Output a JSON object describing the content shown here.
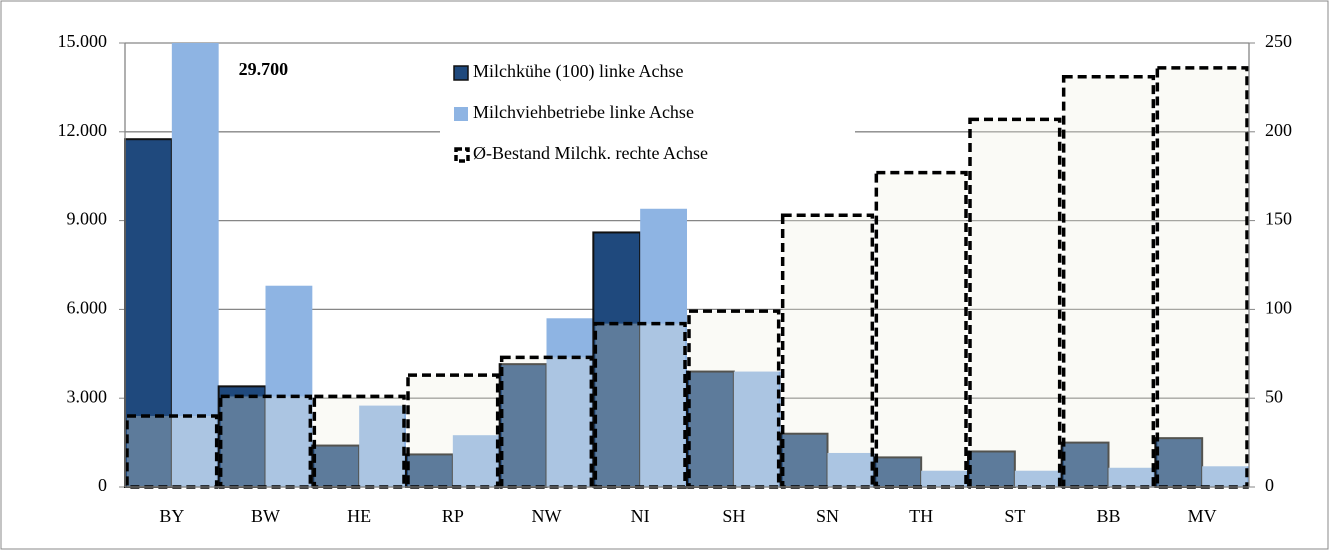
{
  "chart_data": {
    "type": "bar",
    "categories": [
      "BY",
      "BW",
      "HE",
      "RP",
      "NW",
      "NI",
      "SH",
      "SN",
      "TH",
      "ST",
      "BB",
      "MV"
    ],
    "series": [
      {
        "name": "Milchkühe (100) linke Achse",
        "color": "#1f497d",
        "values": [
          11750,
          3400,
          1400,
          1100,
          4150,
          8600,
          3900,
          1800,
          1000,
          1200,
          1500,
          1650
        ]
      },
      {
        "name": "Milchviehbetriebe linke Achse",
        "color": "#8eb4e3",
        "values": [
          29700,
          6800,
          2750,
          1750,
          5700,
          9400,
          3900,
          1150,
          550,
          550,
          650,
          700
        ],
        "value_labels": [
          "29.700",
          null,
          null,
          null,
          null,
          null,
          null,
          null,
          null,
          null,
          null,
          null
        ]
      },
      {
        "name": "Ø-Bestand Milchk. rechte Achse",
        "color": "#000000",
        "axis": "y2",
        "values": [
          40,
          51,
          51,
          63,
          73,
          92,
          99,
          153,
          177,
          207,
          231,
          236
        ]
      }
    ],
    "ylim": [
      0,
      15000
    ],
    "yticks": [
      0,
      {
        "value": 3000,
        "label": "3.000"
      },
      {
        "value": 6000,
        "label": "6.000"
      },
      {
        "value": 9000,
        "label": "9.000"
      },
      {
        "value": 12000,
        "label": "12.000"
      },
      {
        "value": 15000,
        "label": "15.000"
      }
    ],
    "y2lim": [
      0,
      250
    ],
    "y2ticks": [
      0,
      50,
      100,
      150,
      200,
      250
    ],
    "grid": true,
    "legend": "top"
  }
}
